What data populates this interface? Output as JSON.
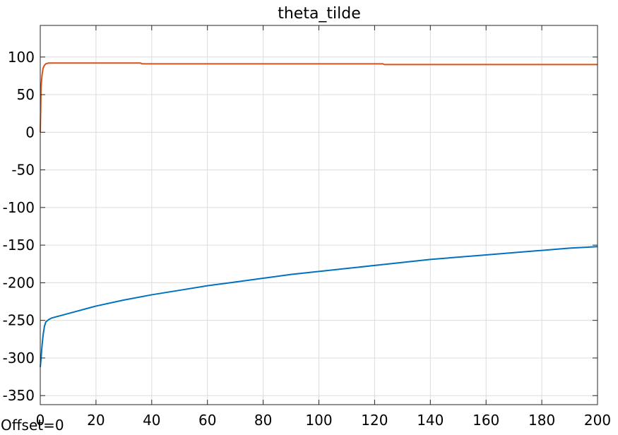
{
  "chart_data": {
    "type": "line",
    "title": "theta_tilde",
    "offset_label": "Offset=0",
    "xlabel": "",
    "ylabel": "",
    "xlim": [
      0,
      200
    ],
    "ylim": [
      -362,
      142
    ],
    "xticks": [
      0,
      20,
      40,
      60,
      80,
      100,
      120,
      140,
      160,
      180,
      200
    ],
    "yticks": [
      100,
      50,
      0,
      -50,
      -100,
      -150,
      -200,
      -250,
      -300,
      -350
    ],
    "grid": true,
    "legend": "none",
    "series": [
      {
        "color": "#0072BD",
        "points": [
          [
            0,
            -312
          ],
          [
            0.3,
            -300
          ],
          [
            0.6,
            -285
          ],
          [
            1,
            -270
          ],
          [
            1.5,
            -258
          ],
          [
            2,
            -252
          ],
          [
            3,
            -249
          ],
          [
            4,
            -247
          ],
          [
            6,
            -245
          ],
          [
            10,
            -241
          ],
          [
            20,
            -231
          ],
          [
            30,
            -223
          ],
          [
            40,
            -216
          ],
          [
            50,
            -210
          ],
          [
            60,
            -204
          ],
          [
            70,
            -199
          ],
          [
            80,
            -194
          ],
          [
            90,
            -189
          ],
          [
            100,
            -185
          ],
          [
            110,
            -181
          ],
          [
            120,
            -177
          ],
          [
            130,
            -173
          ],
          [
            140,
            -169
          ],
          [
            150,
            -166
          ],
          [
            160,
            -163
          ],
          [
            170,
            -160
          ],
          [
            180,
            -157
          ],
          [
            190,
            -154
          ],
          [
            200,
            -152
          ]
        ]
      },
      {
        "color": "#D95319",
        "points": [
          [
            0,
            0
          ],
          [
            0.3,
            60
          ],
          [
            0.6,
            75
          ],
          [
            1,
            85
          ],
          [
            1.5,
            89
          ],
          [
            2,
            91
          ],
          [
            3,
            92
          ],
          [
            5,
            92
          ],
          [
            10,
            92
          ],
          [
            20,
            92
          ],
          [
            36,
            92
          ],
          [
            36.5,
            91
          ],
          [
            60,
            91
          ],
          [
            100,
            91
          ],
          [
            123,
            91
          ],
          [
            123.5,
            90
          ],
          [
            150,
            90
          ],
          [
            200,
            90
          ]
        ]
      }
    ]
  }
}
